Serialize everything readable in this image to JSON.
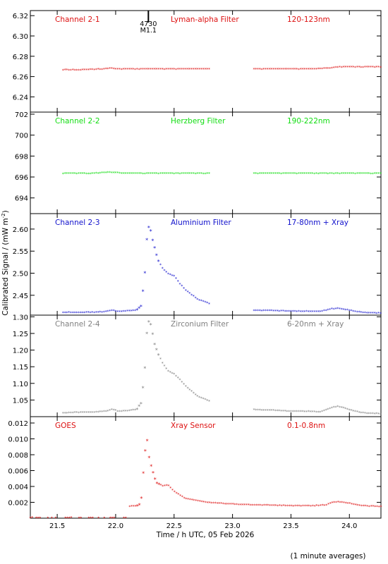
{
  "xlabel": "Time / h UTC, 05 Feb 2026",
  "ylabel": "Calibrated Signal / (mW m",
  "ylabel_sup": "-2",
  "ylabel_close": ")",
  "note": "(1 minute averages)",
  "marker": {
    "label_top": "4730",
    "label_bottom": "M1.1",
    "x": 22.28
  },
  "x_ticks": [
    "21.5",
    "22.0",
    "22.5",
    "23.0",
    "23.5",
    "24.0"
  ],
  "x_tick_values": [
    21.5,
    22.0,
    22.5,
    23.0,
    23.5,
    24.0
  ],
  "colors": {
    "red": "#dd1111",
    "green": "#11dd11",
    "blue": "#1111cc",
    "grey": "#808080",
    "axis": "#000000"
  },
  "chart_data": [
    {
      "type": "scatter",
      "name": "Channel 2-1",
      "filter": "Lyman-alpha Filter",
      "band": "120-123nm",
      "color": "red",
      "xlim": [
        21.27,
        24.27
      ],
      "ylim": [
        6.225,
        6.325
      ],
      "yticks": [
        6.24,
        6.26,
        6.28,
        6.3,
        6.32
      ],
      "ytick_labels": [
        "6.24",
        "6.26",
        "6.28",
        "6.30",
        "6.32"
      ],
      "x": [
        21.55,
        21.7,
        21.9,
        21.95,
        22.0,
        22.1,
        22.3,
        22.5,
        22.8,
        23.17,
        23.4,
        23.7,
        23.85,
        23.9,
        24.27
      ],
      "y": [
        6.266,
        6.266,
        6.267,
        6.268,
        6.267,
        6.267,
        6.267,
        6.267,
        6.267,
        6.267,
        6.267,
        6.267,
        6.268,
        6.269,
        6.269
      ],
      "gaps": [
        [
          22.8,
          23.17
        ]
      ]
    },
    {
      "type": "scatter",
      "name": "Channel 2-2",
      "filter": "Herzberg Filter",
      "band": "190-222nm",
      "color": "green",
      "xlim": [
        21.27,
        24.27
      ],
      "ylim": [
        692.5,
        702.2
      ],
      "yticks": [
        694,
        696,
        698,
        700,
        702
      ],
      "ytick_labels": [
        "694",
        "696",
        "698",
        "700",
        "702"
      ],
      "x": [
        21.55,
        21.8,
        21.95,
        22.1,
        22.3,
        22.8,
        23.17,
        23.5,
        23.9,
        24.27
      ],
      "y": [
        696.3,
        696.3,
        696.4,
        696.3,
        696.3,
        696.3,
        696.3,
        696.3,
        696.3,
        696.3
      ],
      "gaps": [
        [
          22.8,
          23.17
        ]
      ]
    },
    {
      "type": "scatter",
      "name": "Channel 2-3",
      "filter": "Aluminium Filter",
      "band": "17-80nm + Xray",
      "color": "blue",
      "xlim": [
        21.27,
        24.27
      ],
      "ylim": [
        2.405,
        2.635
      ],
      "yticks": [
        2.45,
        2.5,
        2.55,
        2.6
      ],
      "ytick_labels": [
        "2.45",
        "2.50",
        "2.55",
        "2.60"
      ],
      "x": [
        21.55,
        21.8,
        21.92,
        21.97,
        22.02,
        22.1,
        22.18,
        22.22,
        22.25,
        22.27,
        22.29,
        22.31,
        22.33,
        22.36,
        22.4,
        22.45,
        22.5,
        22.55,
        22.6,
        22.7,
        22.8,
        23.17,
        23.5,
        23.75,
        23.85,
        23.9,
        24.0,
        24.1,
        24.27
      ],
      "y": [
        2.41,
        2.41,
        2.412,
        2.415,
        2.412,
        2.413,
        2.415,
        2.425,
        2.5,
        2.59,
        2.61,
        2.58,
        2.56,
        2.53,
        2.51,
        2.497,
        2.493,
        2.475,
        2.46,
        2.44,
        2.43,
        2.415,
        2.413,
        2.412,
        2.418,
        2.419,
        2.415,
        2.41,
        2.408
      ],
      "gaps": [
        [
          22.8,
          23.17
        ]
      ]
    },
    {
      "type": "scatter",
      "name": "Channel 2-4",
      "filter": "Zirconium Filter",
      "band": "6-20nm + Xray",
      "color": "grey",
      "xlim": [
        21.27,
        24.27
      ],
      "ylim": [
        1.0,
        1.305
      ],
      "yticks": [
        1.05,
        1.1,
        1.15,
        1.2,
        1.25,
        1.3
      ],
      "ytick_labels": [
        "1.05",
        "1.10",
        "1.15",
        "1.20",
        "1.25",
        "1.30"
      ],
      "x": [
        21.55,
        21.8,
        21.92,
        21.97,
        22.02,
        22.1,
        22.18,
        22.22,
        22.25,
        22.27,
        22.29,
        22.31,
        22.33,
        22.36,
        22.4,
        22.45,
        22.5,
        22.55,
        22.6,
        22.7,
        22.8,
        23.17,
        23.5,
        23.75,
        23.85,
        23.9,
        24.0,
        24.1,
        24.27
      ],
      "y": [
        1.01,
        1.012,
        1.015,
        1.02,
        1.015,
        1.016,
        1.02,
        1.04,
        1.145,
        1.27,
        1.29,
        1.26,
        1.22,
        1.19,
        1.16,
        1.135,
        1.127,
        1.11,
        1.09,
        1.06,
        1.046,
        1.02,
        1.015,
        1.013,
        1.025,
        1.03,
        1.02,
        1.01,
        1.007
      ],
      "gaps": [
        [
          22.8,
          23.17
        ]
      ]
    },
    {
      "type": "scatter",
      "name": "GOES",
      "filter": "Xray Sensor",
      "band": "0.1-0.8nm",
      "color": "red",
      "xlim": [
        21.27,
        24.27
      ],
      "ylim": [
        0.0,
        0.0128
      ],
      "yticks": [
        0.002,
        0.004,
        0.006,
        0.008,
        0.01,
        0.012
      ],
      "ytick_labels": [
        "0.002",
        "0.004",
        "0.006",
        "0.008",
        "0.010",
        "0.012"
      ],
      "x": [
        21.27,
        21.6,
        21.9,
        22.1,
        22.11,
        22.2,
        22.22,
        22.25,
        22.27,
        22.29,
        22.31,
        22.33,
        22.35,
        22.4,
        22.45,
        22.5,
        22.6,
        22.8,
        23.0,
        23.2,
        23.5,
        23.7,
        23.8,
        23.85,
        23.9,
        24.0,
        24.1,
        24.27
      ],
      "y": [
        0.0,
        0.0,
        0.0,
        0.0,
        0.0014,
        0.0015,
        0.0025,
        0.0082,
        0.0097,
        0.0072,
        0.0062,
        0.0052,
        0.0044,
        0.004,
        0.0041,
        0.0033,
        0.0024,
        0.0019,
        0.0017,
        0.0016,
        0.0015,
        0.0015,
        0.0016,
        0.0019,
        0.002,
        0.0018,
        0.0015,
        0.0014
      ],
      "gaps": [
        [
          22.1,
          22.11
        ]
      ]
    }
  ]
}
